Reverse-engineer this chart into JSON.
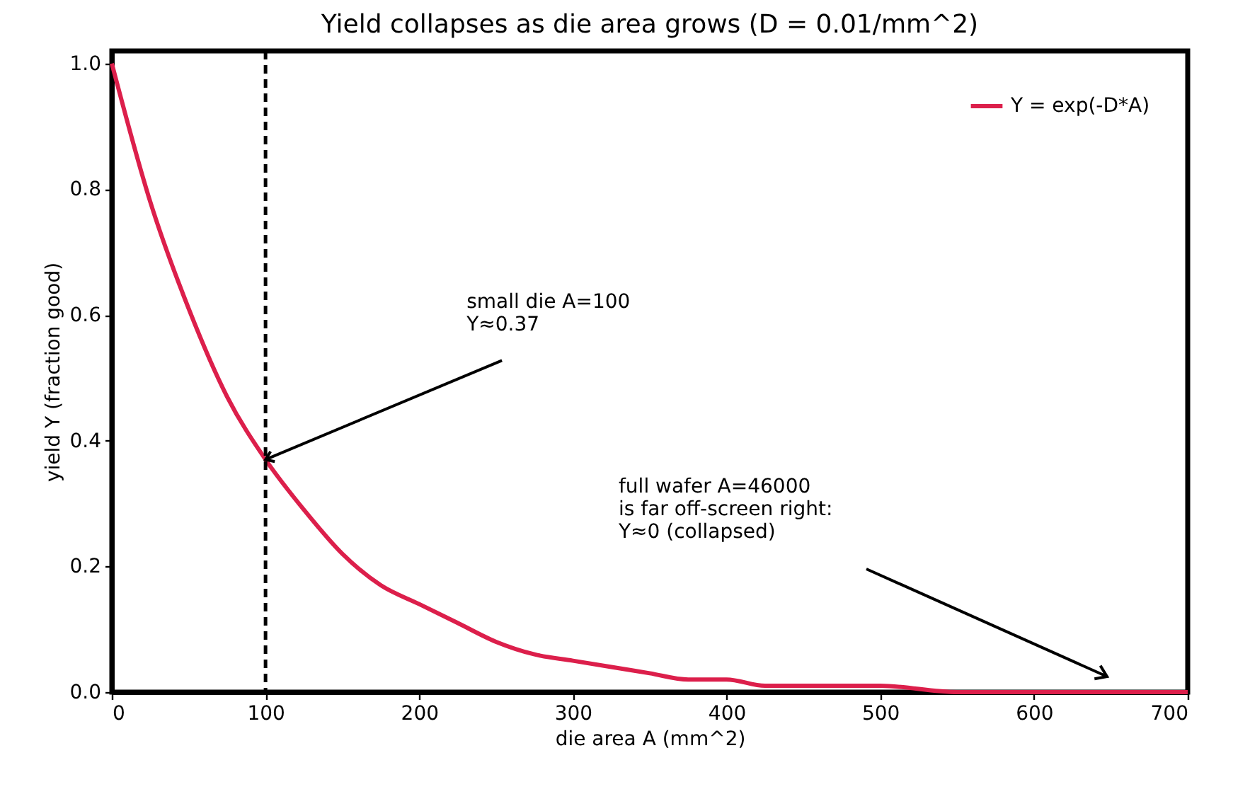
{
  "chart_data": {
    "type": "line",
    "title": "Yield collapses as die area grows (D = 0.01/mm^2)",
    "xlabel": "die area A (mm^2)",
    "ylabel": "yield Y (fraction good)",
    "x": [
      0,
      25,
      50,
      75,
      100,
      125,
      150,
      175,
      200,
      225,
      250,
      275,
      300,
      325,
      350,
      375,
      400,
      425,
      450,
      475,
      500,
      550,
      600,
      650,
      700
    ],
    "series": [
      {
        "name": "Y = exp(-D*A)",
        "color": "#dc1f4b",
        "values": [
          1.0,
          0.78,
          0.61,
          0.47,
          0.37,
          0.29,
          0.22,
          0.17,
          0.14,
          0.11,
          0.08,
          0.06,
          0.05,
          0.04,
          0.03,
          0.02,
          0.02,
          0.01,
          0.01,
          0.01,
          0.01,
          0.0,
          0.0,
          0.0,
          0.0
        ]
      }
    ],
    "xlim": [
      0,
      700
    ],
    "xticks": [
      0,
      100,
      200,
      300,
      400,
      500,
      600,
      700
    ],
    "ylim": [
      0,
      1.02
    ],
    "yticks": [
      {
        "value": 0,
        "label": "0.0"
      },
      {
        "value": 0.2,
        "label": "0.2"
      },
      {
        "value": 0.4,
        "label": "0.4"
      },
      {
        "value": 0.6,
        "label": "0.6"
      },
      {
        "value": 0.8,
        "label": "0.8"
      },
      {
        "value": 1.0,
        "label": "1.0"
      }
    ],
    "ref_lines": [
      {
        "axis": "x",
        "value": 100,
        "color": "#000000",
        "line_style": "dashed"
      }
    ],
    "annotations": [
      {
        "text": "small die A=100\nY≈0.37",
        "x": 100,
        "y": 0.37
      },
      "full wafer A=46000\nis far off-screen right:\nY≈0 (collapsed)"
    ],
    "legend": "top right",
    "grid": false,
    "marker": "none",
    "line_style": "solid"
  }
}
